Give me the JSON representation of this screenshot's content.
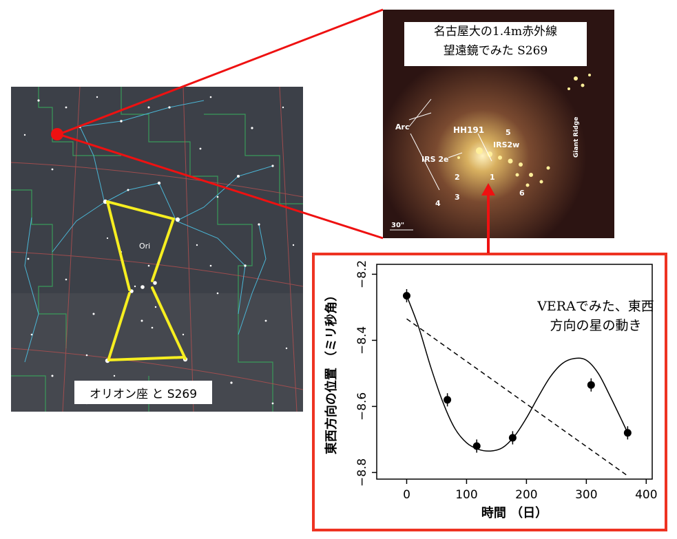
{
  "starmap": {
    "constellation_label": "Ori",
    "caption": "オリオン座 と S269"
  },
  "ir_image": {
    "caption_line1": "名古屋大の1.4m赤外線",
    "caption_line2": "望遠鏡でみた S269",
    "labels": {
      "arc": "Arc",
      "hh191": "HH191",
      "irs2w": "IRS2w",
      "irs2e": "IRS 2e",
      "giant_ridge": "Giant Ridge",
      "n1": "1",
      "n2": "2",
      "n3": "3",
      "n4": "4",
      "n5": "5",
      "n6": "6",
      "scale": "30\""
    }
  },
  "chart_data": {
    "type": "scatter",
    "title": "",
    "annotation_line1": "VERAでみた、東西",
    "annotation_line2": "方向の星の動き",
    "xlabel": "時間 （日）",
    "ylabel": "東西方向の位置 （ミリ秒角）",
    "xlim": [
      -50,
      410
    ],
    "ylim": [
      -8.82,
      -8.17
    ],
    "xticks": [
      0,
      100,
      200,
      300,
      400
    ],
    "yticks": [
      -8.2,
      -8.4,
      -8.6,
      -8.8
    ],
    "xtick_labels": [
      "0",
      "100",
      "200",
      "300",
      "400"
    ],
    "ytick_labels": [
      "−8.2",
      "−8.4",
      "−8.6",
      "−8.8"
    ],
    "points": {
      "x": [
        0,
        68,
        117,
        177,
        308,
        369
      ],
      "y": [
        -8.265,
        -8.58,
        -8.72,
        -8.695,
        -8.535,
        -8.68
      ],
      "yerr": [
        0.02,
        0.02,
        0.02,
        0.02,
        0.02,
        0.02
      ]
    },
    "fit_curve": {
      "x": [
        0,
        20,
        40,
        60,
        80,
        100,
        120,
        140,
        160,
        180,
        200,
        220,
        240,
        260,
        280,
        300,
        320,
        340,
        360,
        369
      ],
      "y": [
        -8.265,
        -8.36,
        -8.48,
        -8.585,
        -8.665,
        -8.71,
        -8.73,
        -8.735,
        -8.725,
        -8.69,
        -8.635,
        -8.57,
        -8.51,
        -8.47,
        -8.455,
        -8.46,
        -8.5,
        -8.57,
        -8.645,
        -8.68
      ]
    },
    "trend_line": {
      "x": [
        0,
        369
      ],
      "y": [
        -8.335,
        -8.81
      ]
    }
  }
}
